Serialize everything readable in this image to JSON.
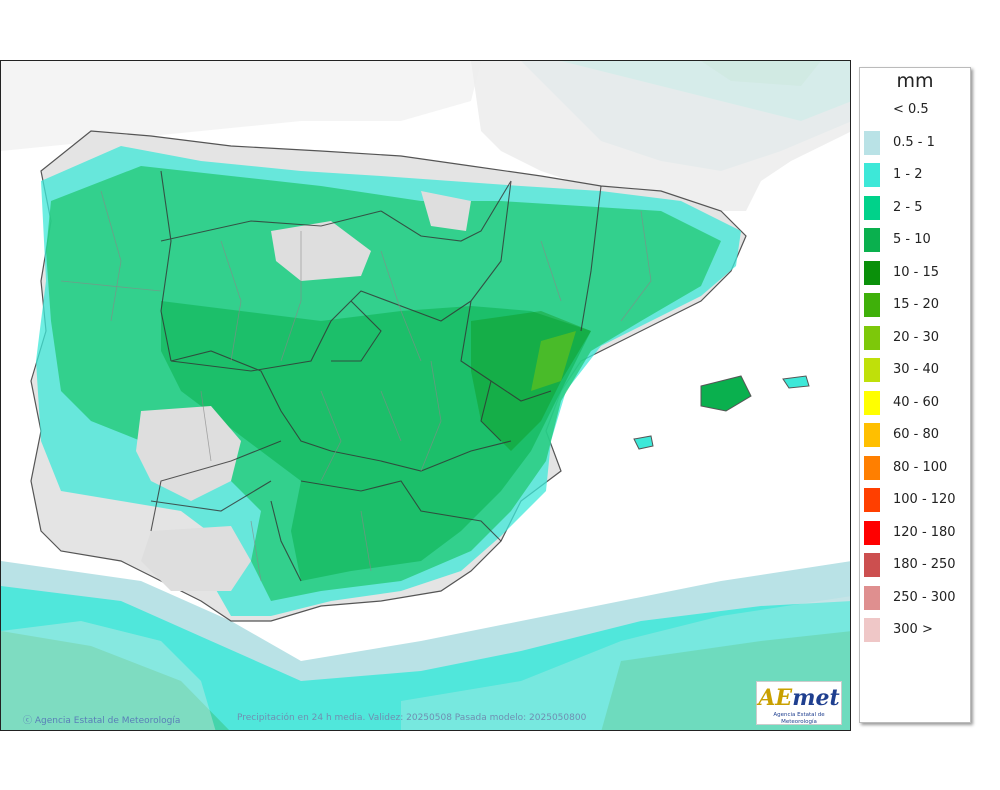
{
  "map": {
    "credit": "Agencia Estatal de Meteorología",
    "footer": "Precipitación en 24 h media. Validez: 20250508 Pasada modelo: 2025050800",
    "logo": {
      "brand_prefix": "AE",
      "brand_suffix": "met",
      "subtitle": "Agencia Estatal de Meteorología"
    }
  },
  "legend": {
    "unit": "mm",
    "items": [
      {
        "label": "< 0.5",
        "color": "#ffffff"
      },
      {
        "label": "0.5 - 1",
        "color": "#b9e2e6"
      },
      {
        "label": "1 - 2",
        "color": "#3de8d8"
      },
      {
        "label": "2 - 5",
        "color": "#00d28a"
      },
      {
        "label": "5 - 10",
        "color": "#0ab04e"
      },
      {
        "label": "10 - 15",
        "color": "#0a900a"
      },
      {
        "label": "15 - 20",
        "color": "#3fb00a"
      },
      {
        "label": "20 - 30",
        "color": "#7dc80a"
      },
      {
        "label": "30 - 40",
        "color": "#bfe00a"
      },
      {
        "label": "40 - 60",
        "color": "#ffff00"
      },
      {
        "label": "60 - 80",
        "color": "#ffbf00"
      },
      {
        "label": "80 - 100",
        "color": "#ff7f00"
      },
      {
        "label": "100 - 120",
        "color": "#ff3f00"
      },
      {
        "label": "120 - 180",
        "color": "#ff0000"
      },
      {
        "label": "180 - 250",
        "color": "#cc4f4f"
      },
      {
        "label": "250 - 300",
        "color": "#df8f8f"
      },
      {
        "label": "300 >",
        "color": "#efc7c7"
      }
    ]
  }
}
